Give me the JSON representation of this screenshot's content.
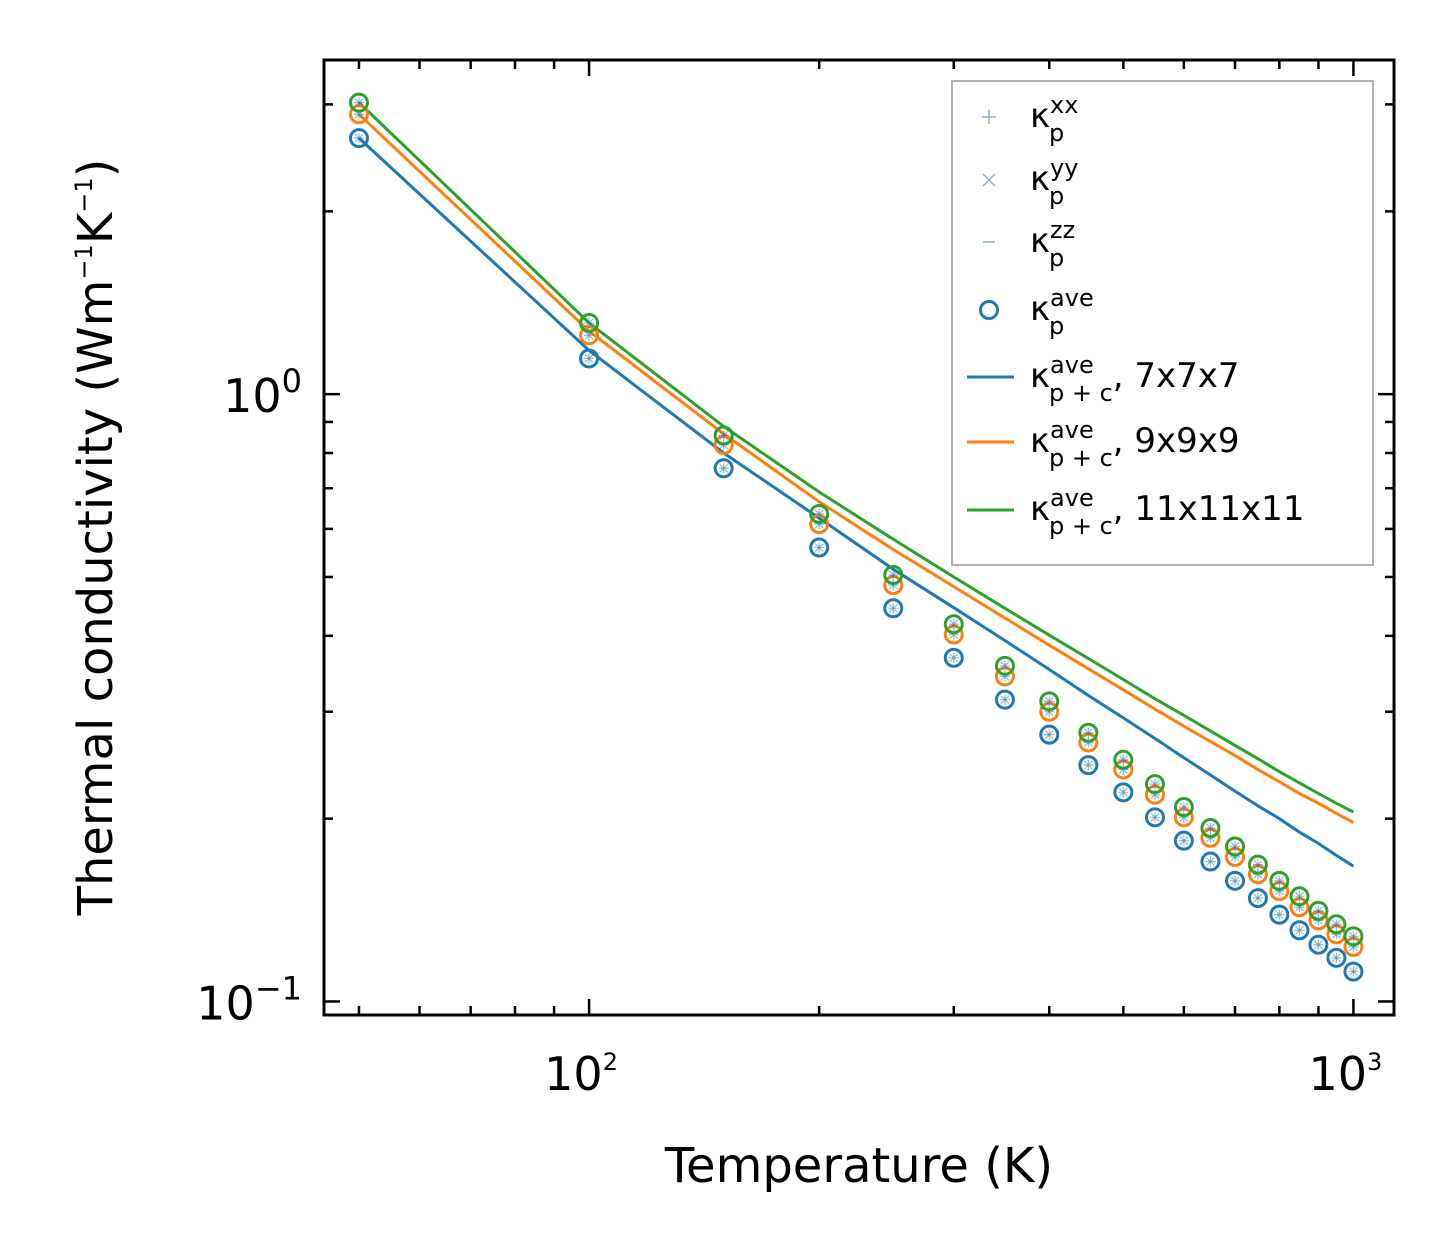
{
  "chart_data": {
    "type": "line",
    "xscale": "log",
    "yscale": "log",
    "xlabel": "Temperature (K)",
    "ylabel_base": "Thermal conductivity (Wm",
    "ylabel_exp1": "−1",
    "ylabel_mid": "K",
    "ylabel_exp2": "−1",
    "ylabel_end": ")",
    "xlim": [
      45,
      1130
    ],
    "ylim": [
      0.095,
      3.55
    ],
    "xticks": [
      {
        "value": 100,
        "base": "10",
        "exp": "2"
      },
      {
        "value": 1000,
        "base": "10",
        "exp": "3"
      }
    ],
    "yticks": [
      {
        "value": 1.0,
        "base": "10",
        "exp": "0"
      },
      {
        "value": 0.1,
        "base": "10",
        "exp": "−1"
      }
    ],
    "grid": false,
    "legend_location": "upper right",
    "x": [
      50,
      100,
      150,
      200,
      250,
      300,
      350,
      400,
      450,
      500,
      550,
      600,
      650,
      700,
      750,
      800,
      850,
      900,
      950,
      1000
    ],
    "series": [
      {
        "name": "7x7x7",
        "color": "#1f77b4",
        "kappa_p_ave": [
          2.64,
          1.145,
          0.755,
          0.559,
          0.444,
          0.368,
          0.314,
          0.275,
          0.245,
          0.221,
          0.201,
          0.184,
          0.17,
          0.158,
          0.148,
          0.139,
          0.131,
          0.124,
          0.118,
          0.112
        ],
        "kappa_pc_ave": [
          2.64,
          1.18,
          0.8,
          0.625,
          0.515,
          0.445,
          0.393,
          0.352,
          0.319,
          0.293,
          0.271,
          0.252,
          0.236,
          0.222,
          0.21,
          0.2,
          0.19,
          0.182,
          0.174,
          0.167
        ]
      },
      {
        "name": "9x9x9",
        "color": "#ff7f0e",
        "kappa_p_ave": [
          2.89,
          1.25,
          0.825,
          0.611,
          0.485,
          0.402,
          0.343,
          0.3,
          0.267,
          0.241,
          0.219,
          0.201,
          0.186,
          0.173,
          0.162,
          0.152,
          0.143,
          0.136,
          0.129,
          0.123
        ],
        "kappa_pc_ave": [
          2.89,
          1.27,
          0.86,
          0.665,
          0.555,
          0.482,
          0.428,
          0.386,
          0.353,
          0.326,
          0.303,
          0.284,
          0.268,
          0.254,
          0.241,
          0.23,
          0.22,
          0.212,
          0.204,
          0.197
        ]
      },
      {
        "name": "11x11x11",
        "color": "#2ca02c",
        "kappa_p_ave": [
          3.02,
          1.31,
          0.855,
          0.635,
          0.504,
          0.418,
          0.357,
          0.312,
          0.277,
          0.25,
          0.228,
          0.209,
          0.193,
          0.18,
          0.168,
          0.158,
          0.149,
          0.141,
          0.134,
          0.128
        ],
        "kappa_pc_ave": [
          3.02,
          1.31,
          0.885,
          0.69,
          0.577,
          0.5,
          0.444,
          0.401,
          0.367,
          0.339,
          0.315,
          0.296,
          0.279,
          0.264,
          0.251,
          0.239,
          0.229,
          0.22,
          0.212,
          0.205
        ]
      }
    ],
    "legend": [
      {
        "kind": "plus",
        "symbol": "κ",
        "sub": "p",
        "sup": "xx",
        "suffix": ""
      },
      {
        "kind": "x",
        "symbol": "κ",
        "sub": "p",
        "sup": "yy",
        "suffix": ""
      },
      {
        "kind": "dash",
        "symbol": "κ",
        "sub": "p",
        "sup": "zz",
        "suffix": ""
      },
      {
        "kind": "circle",
        "symbol": "κ",
        "sub": "p",
        "sup": "ave",
        "suffix": ""
      },
      {
        "kind": "line",
        "series": 0,
        "symbol": "κ",
        "sub": "p + c",
        "sup": "ave",
        "suffix": ", 7x7x7"
      },
      {
        "kind": "line",
        "series": 1,
        "symbol": "κ",
        "sub": "p + c",
        "sup": "ave",
        "suffix": ", 9x9x9"
      },
      {
        "kind": "line",
        "series": 2,
        "symbol": "κ",
        "sub": "p + c",
        "sup": "ave",
        "suffix": ", 11x11x11"
      }
    ],
    "legend_marker_color": "#1f77b4"
  }
}
